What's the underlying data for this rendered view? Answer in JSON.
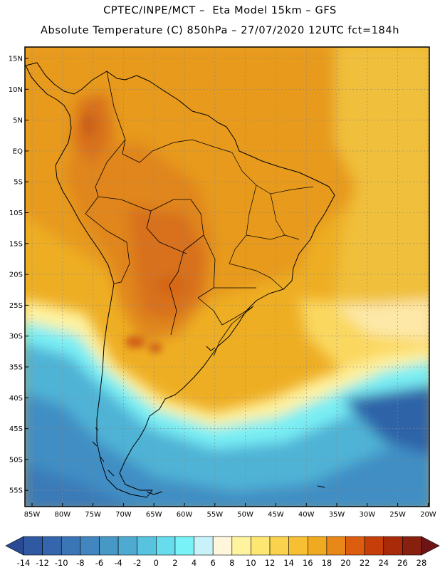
{
  "header": {
    "line1": "CPTEC/INPE/MCT –  Eta Model 15km – GFS",
    "line2": "Absolute Temperature (C) 850hPa – 27/07/2020 12UTC fct=184h"
  },
  "axes": {
    "lat_labels": [
      "15N",
      "10N",
      "5N",
      "EQ",
      "5S",
      "10S",
      "15S",
      "20S",
      "25S",
      "30S",
      "35S",
      "40S",
      "45S",
      "50S",
      "55S"
    ],
    "lon_labels": [
      "85W",
      "80W",
      "75W",
      "70W",
      "65W",
      "60W",
      "55W",
      "50W",
      "45W",
      "40W",
      "35W",
      "30W",
      "25W",
      "20W"
    ]
  },
  "colorbar": {
    "labels": [
      "-14",
      "-12",
      "-10",
      "-8",
      "-6",
      "-4",
      "-2",
      "0",
      "2",
      "4",
      "6",
      "8",
      "10",
      "12",
      "14",
      "16",
      "18",
      "20",
      "22",
      "24",
      "26",
      "28"
    ],
    "colors": [
      "#2a4a94",
      "#2f5aa3",
      "#3566ad",
      "#3a75b6",
      "#4186be",
      "#4898c6",
      "#4eaad0",
      "#58c3de",
      "#66dcec",
      "#78f2f6",
      "#c8f2fa",
      "#fff6dc",
      "#fff3a0",
      "#fde772",
      "#fad24e",
      "#f6bf34",
      "#f0aa22",
      "#e88818",
      "#dc5c10",
      "#c63e0a",
      "#a82a08",
      "#882010",
      "#6e1416"
    ]
  },
  "map": {
    "region": "South America",
    "field": "Absolute Temperature 850hPa",
    "colors": {
      "frame": "#000000",
      "grid": "#888888",
      "coast": "#000000"
    }
  }
}
